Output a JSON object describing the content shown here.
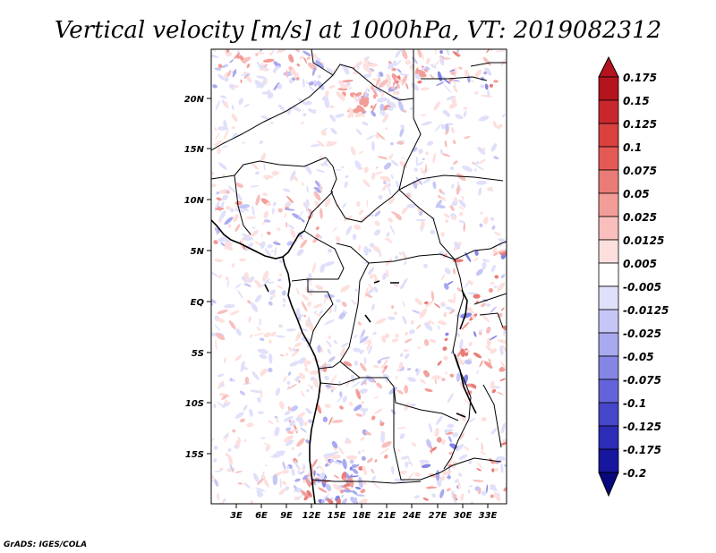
{
  "title": "Vertical velocity [m/s] at 1000hPa, VT: 2019082312",
  "credit": "GrADS: IGES/COLA",
  "map": {
    "lat_labels": [
      "20N",
      "15N",
      "10N",
      "5N",
      "EQ",
      "5S",
      "10S",
      "15S"
    ],
    "lon_labels": [
      "3E",
      "6E",
      "9E",
      "12E",
      "15E",
      "18E",
      "21E",
      "24E",
      "27E",
      "30E",
      "33E"
    ]
  },
  "colorbar": {
    "levels": [
      "0.175",
      "0.15",
      "0.125",
      "0.1",
      "0.075",
      "0.05",
      "0.025",
      "0.0125",
      "0.005",
      "-0.005",
      "-0.0125",
      "-0.025",
      "-0.05",
      "-0.075",
      "-0.1",
      "-0.125",
      "-0.175",
      "-0.2"
    ],
    "colors": [
      "#b4141e",
      "#c8282d",
      "#d9403e",
      "#e35a55",
      "#ea7c78",
      "#f29d98",
      "#f8bfbc",
      "#fde0de",
      "#ffffff",
      "#e0e0fb",
      "#c6c6f6",
      "#a9a9ef",
      "#8585e6",
      "#6464da",
      "#4646ca",
      "#2c2cb6",
      "#16169e",
      "#08087e"
    ]
  }
}
